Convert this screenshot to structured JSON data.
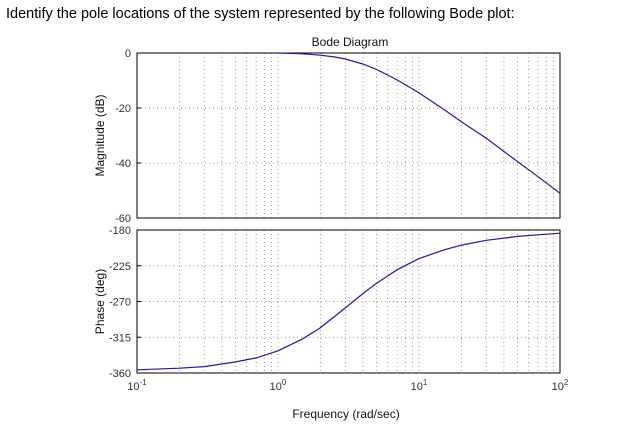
{
  "question": "Identify the pole locations of the system represented by the following Bode plot:",
  "colors": {
    "curve": "#1a1aa8",
    "grid": "#9a9a9a",
    "axes": "#000000"
  },
  "chart_data": {
    "type": "line",
    "title": "Bode Diagram",
    "xlabel": "Frequency (rad/sec)",
    "xscale": "log",
    "xlim": [
      0.1,
      100
    ],
    "xticks": [
      {
        "value": 0.1,
        "base": "10",
        "exp": "-1"
      },
      {
        "value": 1,
        "base": "10",
        "exp": "0"
      },
      {
        "value": 10,
        "base": "10",
        "exp": "1"
      },
      {
        "value": 100,
        "base": "10",
        "exp": "2"
      }
    ],
    "grid": true,
    "subplots": [
      {
        "name": "magnitude",
        "ylabel": "Magnitude (dB)",
        "ylim": [
          -60,
          0
        ],
        "yticks": [
          0,
          -20,
          -40,
          -60
        ],
        "series": [
          {
            "x": [
              1,
              1.5,
              2,
              2.5,
              3,
              4,
              5,
              6,
              7,
              8,
              10,
              15,
              20,
              30,
              50,
              70,
              100
            ],
            "y": [
              0,
              -0.3,
              -0.8,
              -1.4,
              -2.2,
              -4.0,
              -6.0,
              -8.0,
              -9.8,
              -11.5,
              -14.5,
              -20.5,
              -25.0,
              -31.0,
              -39.5,
              -45.0,
              -51.0
            ]
          }
        ]
      },
      {
        "name": "phase",
        "ylabel": "Phase (deg)",
        "ylim": [
          -360,
          -180
        ],
        "yticks": [
          -180,
          -225,
          -270,
          -315,
          -360
        ],
        "series": [
          {
            "x": [
              0.1,
              0.2,
              0.3,
              0.5,
              0.7,
              1,
              1.5,
              2,
              3,
              4,
              5,
              7,
              10,
              15,
              20,
              30,
              50,
              70,
              100
            ],
            "y": [
              -356,
              -354,
              -352,
              -346,
              -341,
              -332,
              -317,
              -303,
              -278,
              -260,
              -247,
              -230,
              -216,
              -205,
              -199,
              -193,
              -188,
              -186,
              -184
            ]
          }
        ]
      }
    ]
  }
}
